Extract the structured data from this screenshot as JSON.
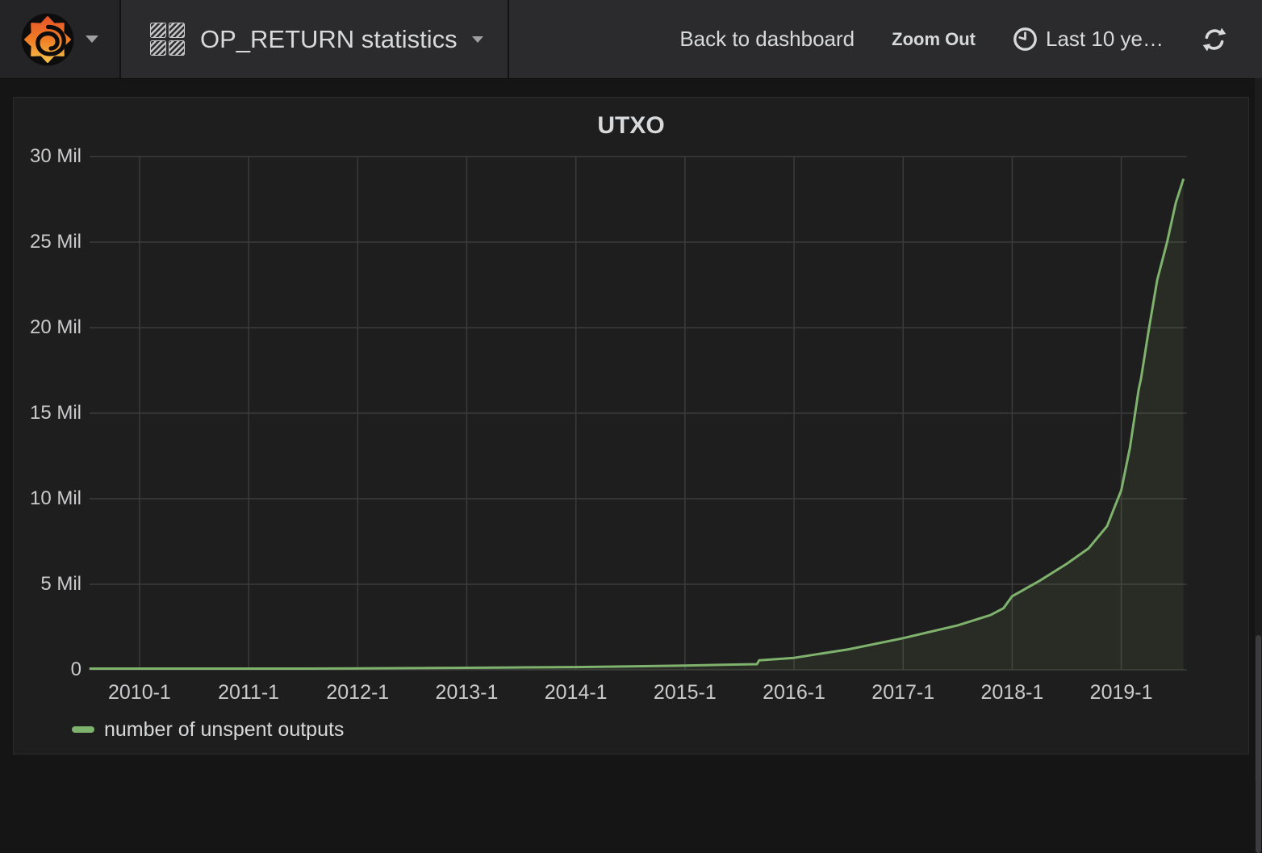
{
  "header": {
    "dashboard_title": "OP_RETURN statistics",
    "back_label": "Back to dashboard",
    "zoom_out_label": "Zoom Out",
    "time_range_label": "Last 10 ye…",
    "icons": [
      "grafana-logo-icon",
      "chevron-down-icon",
      "dashboard-grid-icon",
      "clock-icon",
      "refresh-icon"
    ],
    "background": "#2b2b2d"
  },
  "panel": {
    "title": "UTXO",
    "background": "#1f1e1e"
  },
  "chart_data": {
    "type": "area",
    "title": "UTXO",
    "xlabel": "",
    "ylabel": "",
    "grid": true,
    "legend_position": "bottom-left",
    "x_unit": "decimal_year",
    "xlim": [
      2009.542,
      2019.602
    ],
    "ylim_millions": [
      0,
      30
    ],
    "yticks": [
      {
        "value_millions": 0,
        "label": "0"
      },
      {
        "value_millions": 5,
        "label": "5 Mil"
      },
      {
        "value_millions": 10,
        "label": "10 Mil"
      },
      {
        "value_millions": 15,
        "label": "15 Mil"
      },
      {
        "value_millions": 20,
        "label": "20 Mil"
      },
      {
        "value_millions": 25,
        "label": "25 Mil"
      },
      {
        "value_millions": 30,
        "label": "30 Mil"
      }
    ],
    "xticks": [
      {
        "value": 2010,
        "label": "2010-1"
      },
      {
        "value": 2011,
        "label": "2011-1"
      },
      {
        "value": 2012,
        "label": "2012-1"
      },
      {
        "value": 2013,
        "label": "2013-1"
      },
      {
        "value": 2014,
        "label": "2014-1"
      },
      {
        "value": 2015,
        "label": "2015-1"
      },
      {
        "value": 2016,
        "label": "2016-1"
      },
      {
        "value": 2017,
        "label": "2017-1"
      },
      {
        "value": 2018,
        "label": "2018-1"
      },
      {
        "value": 2019,
        "label": "2019-1"
      }
    ],
    "series": [
      {
        "name": "number of unspent outputs",
        "color": "#7eb26d",
        "fill_opacity": 0.1,
        "x": [
          2009.54,
          2010.0,
          2010.5,
          2011.0,
          2011.5,
          2012.0,
          2012.5,
          2013.0,
          2013.5,
          2014.0,
          2014.5,
          2015.0,
          2015.4,
          2015.66,
          2015.68,
          2016.0,
          2016.5,
          2017.0,
          2017.5,
          2017.8,
          2017.92,
          2018.0,
          2018.25,
          2018.5,
          2018.7,
          2018.87,
          2019.0,
          2019.08,
          2019.16,
          2019.18,
          2019.25,
          2019.33,
          2019.42,
          2019.5,
          2019.57
        ],
        "y_millions": [
          0.02,
          0.03,
          0.04,
          0.05,
          0.06,
          0.08,
          0.1,
          0.12,
          0.14,
          0.16,
          0.2,
          0.25,
          0.3,
          0.33,
          0.55,
          0.7,
          1.2,
          1.85,
          2.6,
          3.2,
          3.6,
          4.3,
          5.2,
          6.2,
          7.1,
          8.4,
          10.5,
          13.0,
          16.4,
          17.0,
          19.8,
          22.8,
          25.0,
          27.3,
          28.7
        ]
      }
    ]
  }
}
